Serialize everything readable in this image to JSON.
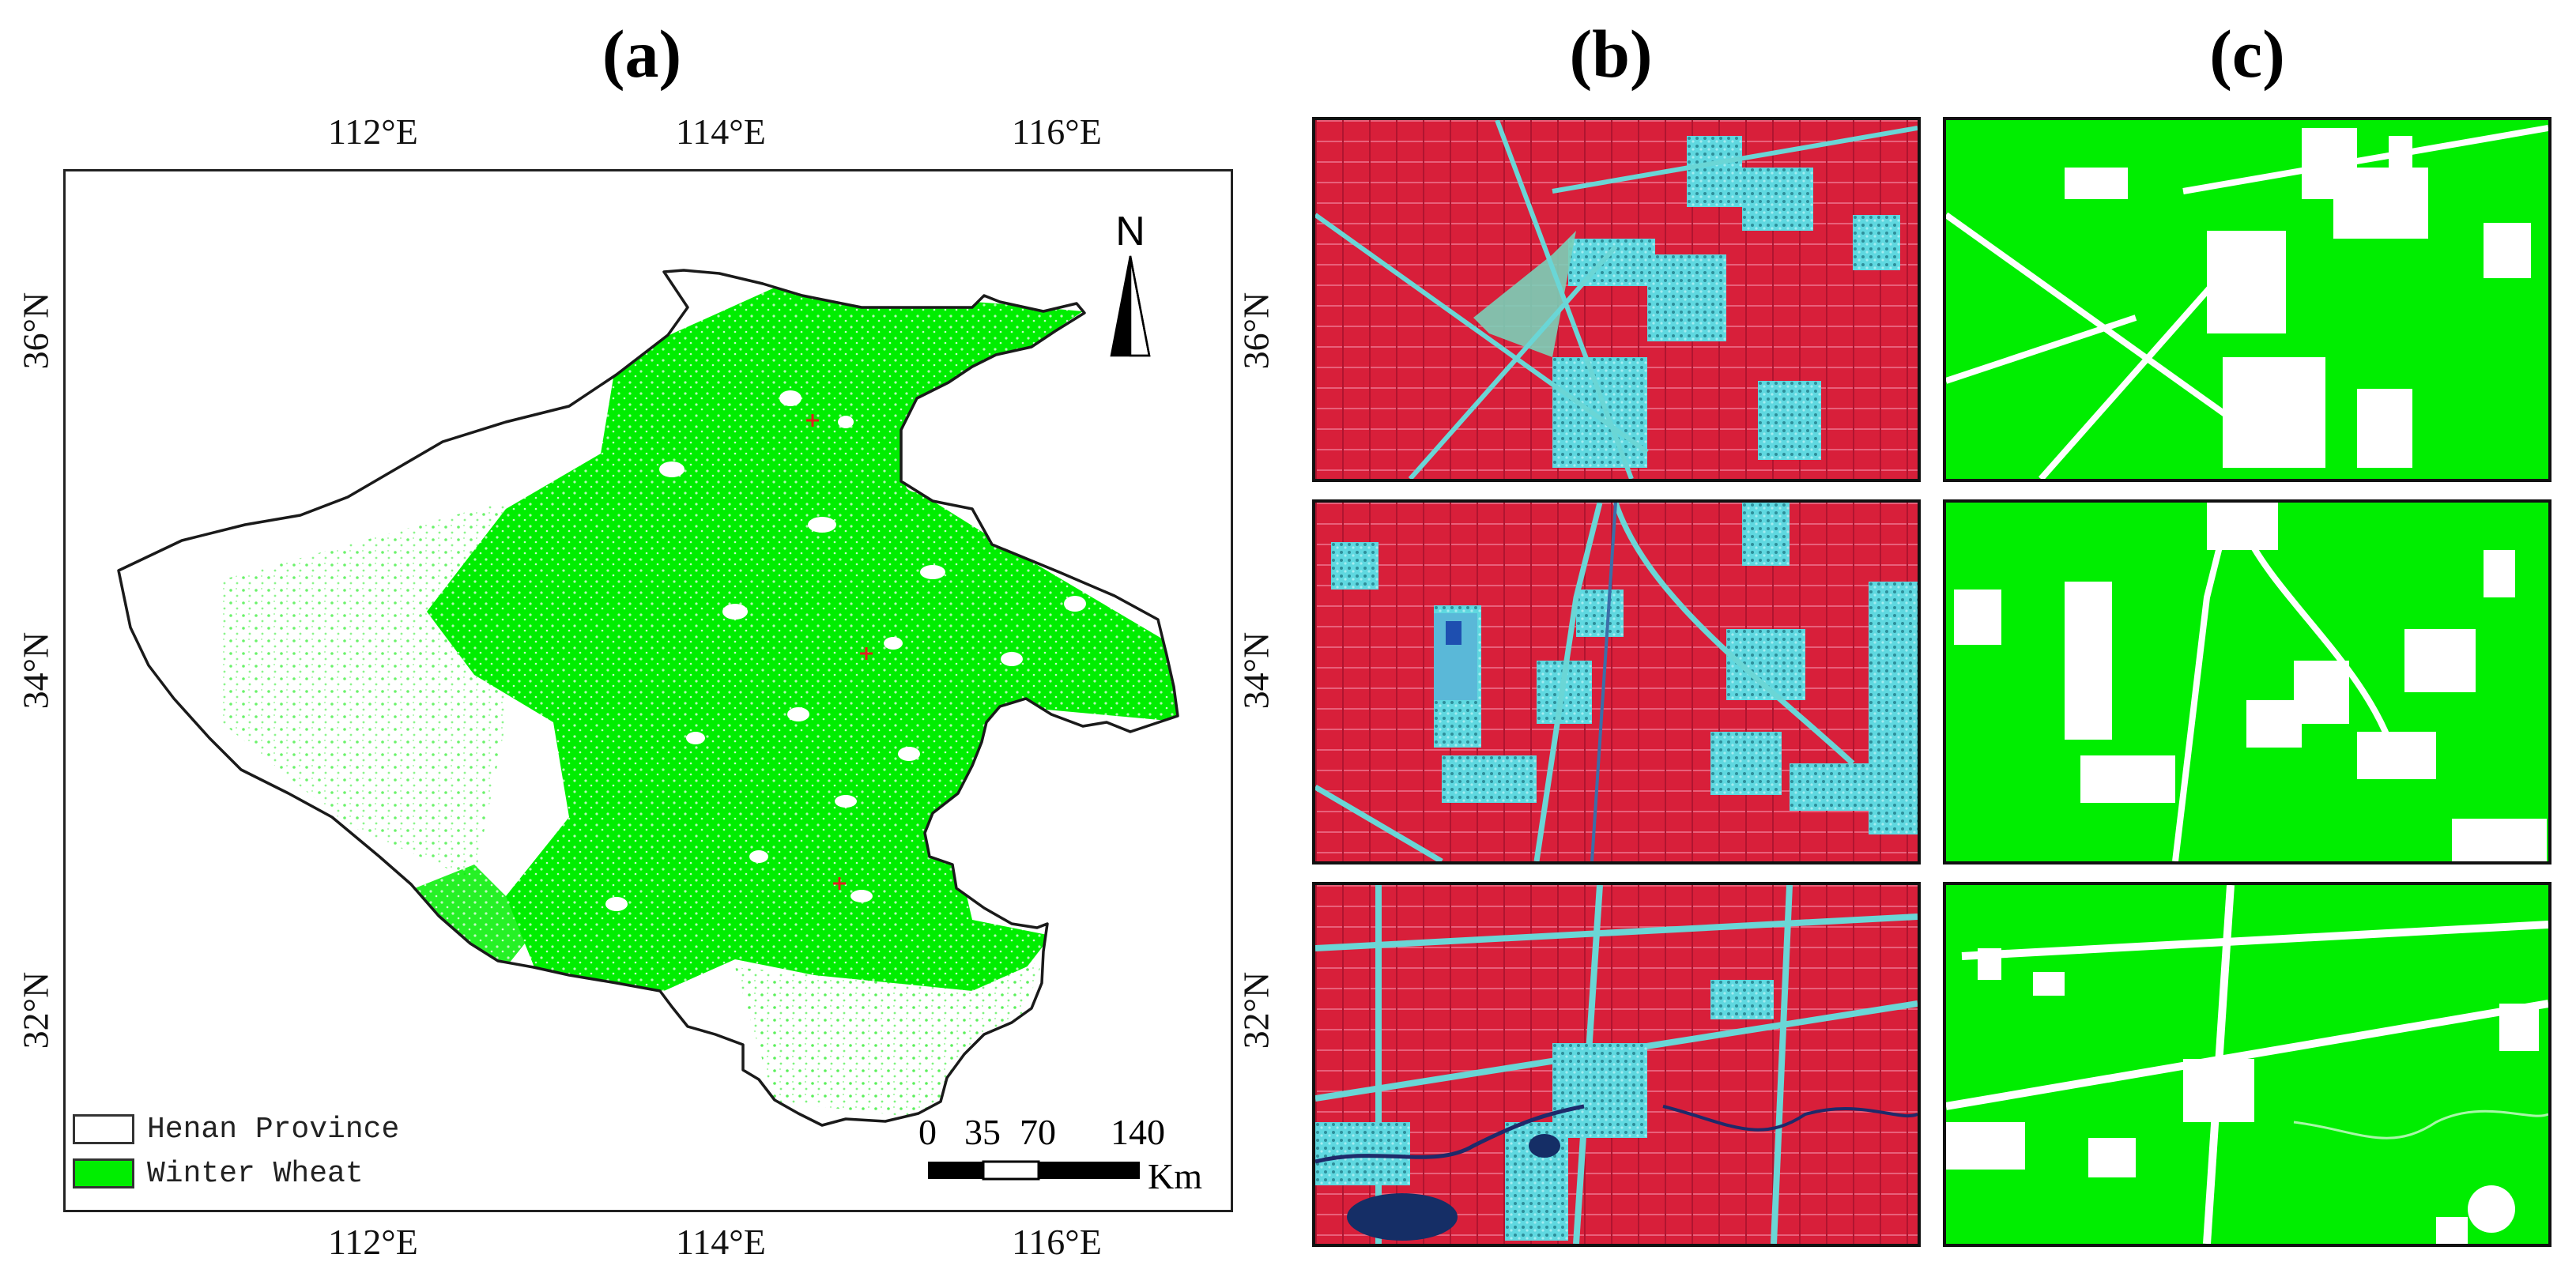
{
  "panels": {
    "a": "(a)",
    "b": "(b)",
    "c": "(c)"
  },
  "map": {
    "lon_labels": [
      "112°E",
      "114°E",
      "116°E"
    ],
    "lat_labels": [
      "36°N",
      "34°N",
      "32°N"
    ],
    "north_label": "N",
    "legend": [
      {
        "label": "Henan Province",
        "color": "#ffffff"
      },
      {
        "label": "Winter Wheat",
        "color": "#00ee00"
      }
    ],
    "scale": {
      "ticks": [
        "0",
        "35",
        "70",
        "140"
      ],
      "unit": "Km"
    },
    "sample_marker_count": 3
  },
  "colors": {
    "wheat": "#00ee00",
    "false_color_red": "#d81f3a",
    "false_color_cyan": "#5fd8e0"
  }
}
